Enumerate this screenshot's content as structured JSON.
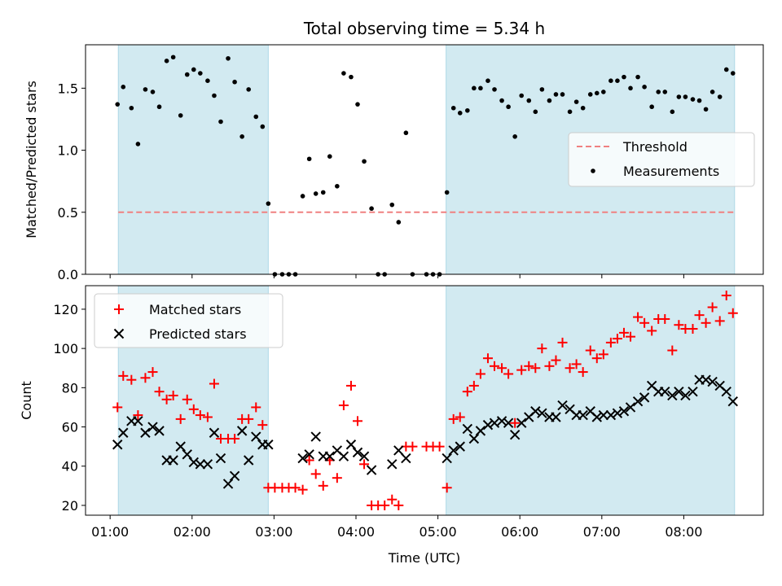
{
  "chart_data": [
    {
      "type": "scatter",
      "title": "Total observing time = 5.34 h",
      "xlabel": "",
      "ylabel": "Matched/Predicted stars",
      "ylim": [
        0,
        1.85
      ],
      "yticks": [
        0.0,
        0.5,
        1.0,
        1.5
      ],
      "ytick_labels": [
        "0.0",
        "0.5",
        "1.0",
        "1.5"
      ],
      "xlim_hours": [
        0.7,
        8.97
      ],
      "shaded_ranges_hours": [
        [
          1.1,
          2.93
        ],
        [
          5.1,
          8.62
        ]
      ],
      "shade_color": "#add8e6",
      "threshold": {
        "name": "Threshold",
        "value": 0.5,
        "color": "#f08080"
      },
      "legend": {
        "placement": "center-right",
        "entries": [
          "Threshold",
          "Measurements"
        ]
      },
      "series": [
        {
          "name": "Measurements",
          "color": "#000000",
          "points": [
            [
              1.09,
              1.37
            ],
            [
              1.16,
              1.51
            ],
            [
              1.26,
              1.34
            ],
            [
              1.34,
              1.05
            ],
            [
              1.43,
              1.49
            ],
            [
              1.52,
              1.47
            ],
            [
              1.6,
              1.35
            ],
            [
              1.69,
              1.72
            ],
            [
              1.77,
              1.75
            ],
            [
              1.86,
              1.28
            ],
            [
              1.94,
              1.61
            ],
            [
              2.02,
              1.65
            ],
            [
              2.1,
              1.62
            ],
            [
              2.19,
              1.56
            ],
            [
              2.27,
              1.44
            ],
            [
              2.35,
              1.23
            ],
            [
              2.44,
              1.74
            ],
            [
              2.52,
              1.55
            ],
            [
              2.61,
              1.11
            ],
            [
              2.69,
              1.49
            ],
            [
              2.78,
              1.27
            ],
            [
              2.86,
              1.19
            ],
            [
              2.93,
              0.57
            ],
            [
              3.01,
              0.0
            ],
            [
              3.1,
              0.0
            ],
            [
              3.18,
              0.0
            ],
            [
              3.26,
              0.0
            ],
            [
              3.35,
              0.63
            ],
            [
              3.43,
              0.93
            ],
            [
              3.51,
              0.65
            ],
            [
              3.6,
              0.66
            ],
            [
              3.68,
              0.95
            ],
            [
              3.77,
              0.71
            ],
            [
              3.85,
              1.62
            ],
            [
              3.94,
              1.59
            ],
            [
              4.02,
              1.37
            ],
            [
              4.1,
              0.91
            ],
            [
              4.19,
              0.53
            ],
            [
              4.27,
              0.0
            ],
            [
              4.35,
              0.0
            ],
            [
              4.44,
              0.56
            ],
            [
              4.52,
              0.42
            ],
            [
              4.61,
              1.14
            ],
            [
              4.69,
              0.0
            ],
            [
              4.86,
              0.0
            ],
            [
              4.94,
              0.0
            ],
            [
              5.02,
              0.0
            ],
            [
              5.11,
              0.66
            ],
            [
              5.19,
              1.34
            ],
            [
              5.27,
              1.3
            ],
            [
              5.36,
              1.32
            ],
            [
              5.44,
              1.5
            ],
            [
              5.52,
              1.5
            ],
            [
              5.61,
              1.56
            ],
            [
              5.69,
              1.49
            ],
            [
              5.78,
              1.4
            ],
            [
              5.86,
              1.35
            ],
            [
              5.94,
              1.11
            ],
            [
              6.02,
              1.44
            ],
            [
              6.11,
              1.4
            ],
            [
              6.19,
              1.31
            ],
            [
              6.27,
              1.49
            ],
            [
              6.36,
              1.4
            ],
            [
              6.44,
              1.45
            ],
            [
              6.52,
              1.45
            ],
            [
              6.61,
              1.31
            ],
            [
              6.69,
              1.39
            ],
            [
              6.77,
              1.34
            ],
            [
              6.86,
              1.45
            ],
            [
              6.94,
              1.46
            ],
            [
              7.02,
              1.47
            ],
            [
              7.11,
              1.56
            ],
            [
              7.19,
              1.56
            ],
            [
              7.27,
              1.59
            ],
            [
              7.35,
              1.5
            ],
            [
              7.44,
              1.59
            ],
            [
              7.52,
              1.51
            ],
            [
              7.61,
              1.35
            ],
            [
              7.69,
              1.47
            ],
            [
              7.77,
              1.47
            ],
            [
              7.86,
              1.31
            ],
            [
              7.94,
              1.43
            ],
            [
              8.02,
              1.43
            ],
            [
              8.11,
              1.41
            ],
            [
              8.19,
              1.4
            ],
            [
              8.27,
              1.33
            ],
            [
              8.35,
              1.47
            ],
            [
              8.44,
              1.43
            ],
            [
              8.52,
              1.65
            ],
            [
              8.6,
              1.62
            ]
          ]
        }
      ]
    },
    {
      "type": "scatter",
      "title": "",
      "xlabel": "Time (UTC)",
      "ylabel": "Count",
      "ylim": [
        15,
        132
      ],
      "yticks": [
        20,
        40,
        60,
        80,
        100,
        120
      ],
      "ytick_labels": [
        "20",
        "40",
        "60",
        "80",
        "100",
        "120"
      ],
      "xlim_hours": [
        0.7,
        8.97
      ],
      "xticks_hours": [
        1,
        2,
        3,
        4,
        5,
        6,
        7,
        8
      ],
      "xtick_labels": [
        "01:00",
        "02:00",
        "03:00",
        "04:00",
        "05:00",
        "06:00",
        "07:00",
        "08:00"
      ],
      "shaded_ranges_hours": [
        [
          1.1,
          2.93
        ],
        [
          5.1,
          8.62
        ]
      ],
      "shade_color": "#add8e6",
      "legend": {
        "placement": "top-left",
        "entries": [
          "Matched stars",
          "Predicted stars"
        ]
      },
      "series": [
        {
          "name": "Matched stars",
          "marker": "+",
          "color": "#ff0000",
          "points": [
            [
              1.09,
              70
            ],
            [
              1.16,
              86
            ],
            [
              1.26,
              84
            ],
            [
              1.34,
              66
            ],
            [
              1.43,
              85
            ],
            [
              1.52,
              88
            ],
            [
              1.6,
              78
            ],
            [
              1.69,
              74
            ],
            [
              1.77,
              76
            ],
            [
              1.86,
              64
            ],
            [
              1.94,
              74
            ],
            [
              2.02,
              69
            ],
            [
              2.1,
              66
            ],
            [
              2.19,
              65
            ],
            [
              2.27,
              82
            ],
            [
              2.35,
              54
            ],
            [
              2.44,
              54
            ],
            [
              2.52,
              54
            ],
            [
              2.61,
              64
            ],
            [
              2.69,
              64
            ],
            [
              2.78,
              70
            ],
            [
              2.86,
              61
            ],
            [
              2.93,
              29
            ],
            [
              3.01,
              29
            ],
            [
              3.1,
              29
            ],
            [
              3.18,
              29
            ],
            [
              3.26,
              29
            ],
            [
              3.35,
              28
            ],
            [
              3.43,
              43
            ],
            [
              3.51,
              36
            ],
            [
              3.6,
              30
            ],
            [
              3.68,
              43
            ],
            [
              3.77,
              34
            ],
            [
              3.85,
              71
            ],
            [
              3.94,
              81
            ],
            [
              4.02,
              63
            ],
            [
              4.1,
              41
            ],
            [
              4.19,
              20
            ],
            [
              4.27,
              20
            ],
            [
              4.35,
              20
            ],
            [
              4.44,
              23
            ],
            [
              4.52,
              20
            ],
            [
              4.61,
              50
            ],
            [
              4.69,
              50
            ],
            [
              4.86,
              50
            ],
            [
              4.94,
              50
            ],
            [
              5.02,
              50
            ],
            [
              5.11,
              29
            ],
            [
              5.19,
              64
            ],
            [
              5.27,
              65
            ],
            [
              5.36,
              78
            ],
            [
              5.44,
              81
            ],
            [
              5.52,
              87
            ],
            [
              5.61,
              95
            ],
            [
              5.69,
              91
            ],
            [
              5.78,
              90
            ],
            [
              5.86,
              87
            ],
            [
              5.94,
              62
            ],
            [
              6.02,
              89
            ],
            [
              6.11,
              91
            ],
            [
              6.19,
              90
            ],
            [
              6.27,
              100
            ],
            [
              6.36,
              91
            ],
            [
              6.44,
              94
            ],
            [
              6.52,
              103
            ],
            [
              6.61,
              90
            ],
            [
              6.69,
              92
            ],
            [
              6.77,
              88
            ],
            [
              6.86,
              99
            ],
            [
              6.94,
              95
            ],
            [
              7.02,
              97
            ],
            [
              7.11,
              103
            ],
            [
              7.19,
              105
            ],
            [
              7.27,
              108
            ],
            [
              7.35,
              106
            ],
            [
              7.44,
              116
            ],
            [
              7.52,
              113
            ],
            [
              7.61,
              109
            ],
            [
              7.69,
              115
            ],
            [
              7.77,
              115
            ],
            [
              7.86,
              99
            ],
            [
              7.94,
              112
            ],
            [
              8.02,
              110
            ],
            [
              8.11,
              110
            ],
            [
              8.19,
              117
            ],
            [
              8.27,
              113
            ],
            [
              8.35,
              121
            ],
            [
              8.44,
              114
            ],
            [
              8.52,
              127
            ],
            [
              8.6,
              118
            ]
          ]
        },
        {
          "name": "Predicted stars",
          "marker": "x",
          "color": "#000000",
          "points": [
            [
              1.09,
              51
            ],
            [
              1.16,
              57
            ],
            [
              1.26,
              63
            ],
            [
              1.34,
              63
            ],
            [
              1.43,
              57
            ],
            [
              1.52,
              60
            ],
            [
              1.6,
              58
            ],
            [
              1.69,
              43
            ],
            [
              1.77,
              43
            ],
            [
              1.86,
              50
            ],
            [
              1.94,
              46
            ],
            [
              2.02,
              42
            ],
            [
              2.1,
              41
            ],
            [
              2.19,
              41
            ],
            [
              2.27,
              57
            ],
            [
              2.35,
              44
            ],
            [
              2.44,
              31
            ],
            [
              2.52,
              35
            ],
            [
              2.61,
              58
            ],
            [
              2.69,
              43
            ],
            [
              2.78,
              55
            ],
            [
              2.86,
              51
            ],
            [
              2.93,
              51
            ],
            [
              3.35,
              44
            ],
            [
              3.43,
              46
            ],
            [
              3.51,
              55
            ],
            [
              3.6,
              45
            ],
            [
              3.68,
              45
            ],
            [
              3.77,
              48
            ],
            [
              3.85,
              45
            ],
            [
              3.94,
              51
            ],
            [
              4.02,
              47
            ],
            [
              4.1,
              45
            ],
            [
              4.19,
              38
            ],
            [
              4.44,
              41
            ],
            [
              4.52,
              48
            ],
            [
              4.61,
              44
            ],
            [
              5.11,
              44
            ],
            [
              5.19,
              48
            ],
            [
              5.27,
              50
            ],
            [
              5.36,
              59
            ],
            [
              5.44,
              54
            ],
            [
              5.52,
              58
            ],
            [
              5.61,
              61
            ],
            [
              5.69,
              62
            ],
            [
              5.78,
              63
            ],
            [
              5.86,
              62
            ],
            [
              5.94,
              56
            ],
            [
              6.02,
              62
            ],
            [
              6.11,
              65
            ],
            [
              6.19,
              68
            ],
            [
              6.27,
              67
            ],
            [
              6.36,
              65
            ],
            [
              6.44,
              65
            ],
            [
              6.52,
              71
            ],
            [
              6.61,
              69
            ],
            [
              6.69,
              66
            ],
            [
              6.77,
              66
            ],
            [
              6.86,
              68
            ],
            [
              6.94,
              65
            ],
            [
              7.02,
              66
            ],
            [
              7.11,
              66
            ],
            [
              7.19,
              67
            ],
            [
              7.27,
              68
            ],
            [
              7.35,
              70
            ],
            [
              7.44,
              73
            ],
            [
              7.52,
              75
            ],
            [
              7.61,
              81
            ],
            [
              7.69,
              78
            ],
            [
              7.77,
              78
            ],
            [
              7.86,
              76
            ],
            [
              7.94,
              78
            ],
            [
              8.02,
              76
            ],
            [
              8.11,
              78
            ],
            [
              8.19,
              84
            ],
            [
              8.27,
              84
            ],
            [
              8.35,
              83
            ],
            [
              8.44,
              81
            ],
            [
              8.52,
              78
            ],
            [
              8.6,
              73
            ]
          ]
        }
      ]
    }
  ]
}
